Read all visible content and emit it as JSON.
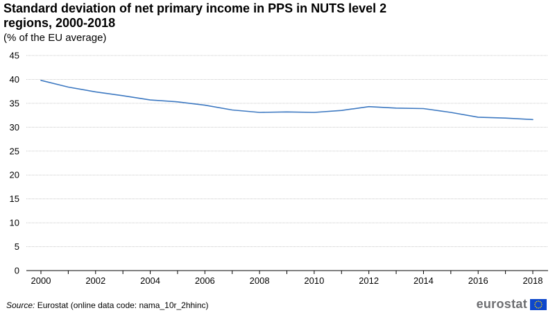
{
  "title": "Standard deviation of net primary income in PPS in NUTS level 2 regions, 2000-2018",
  "subtitle": "(% of the EU average)",
  "source": {
    "label": "Source:",
    "text": " Eurostat (online data code: nama_10r_2hhinc)"
  },
  "logo": {
    "text": "eurostat",
    "flag_color": "#0e47cb",
    "star_color": "#ffdd00"
  },
  "chart_data": {
    "type": "line",
    "x": [
      2000,
      2001,
      2002,
      2003,
      2004,
      2005,
      2006,
      2007,
      2008,
      2009,
      2010,
      2011,
      2012,
      2013,
      2014,
      2015,
      2016,
      2017,
      2018
    ],
    "x_tick_labels": [
      "2000",
      "2002",
      "2004",
      "2006",
      "2008",
      "2010",
      "2012",
      "2014",
      "2016",
      "2018"
    ],
    "series": [
      {
        "values": [
          39.8,
          38.4,
          37.4,
          36.6,
          35.7,
          35.3,
          34.6,
          33.6,
          33.1,
          33.2,
          33.1,
          33.5,
          34.3,
          34.0,
          33.9,
          33.1,
          32.1,
          31.9,
          31.6
        ],
        "color": "#3c78c1"
      }
    ],
    "ylim": [
      0,
      45
    ],
    "y_ticks": [
      0,
      5,
      10,
      15,
      20,
      25,
      30,
      35,
      40,
      45
    ],
    "grid": "horizontal dashed",
    "legend": "none"
  }
}
